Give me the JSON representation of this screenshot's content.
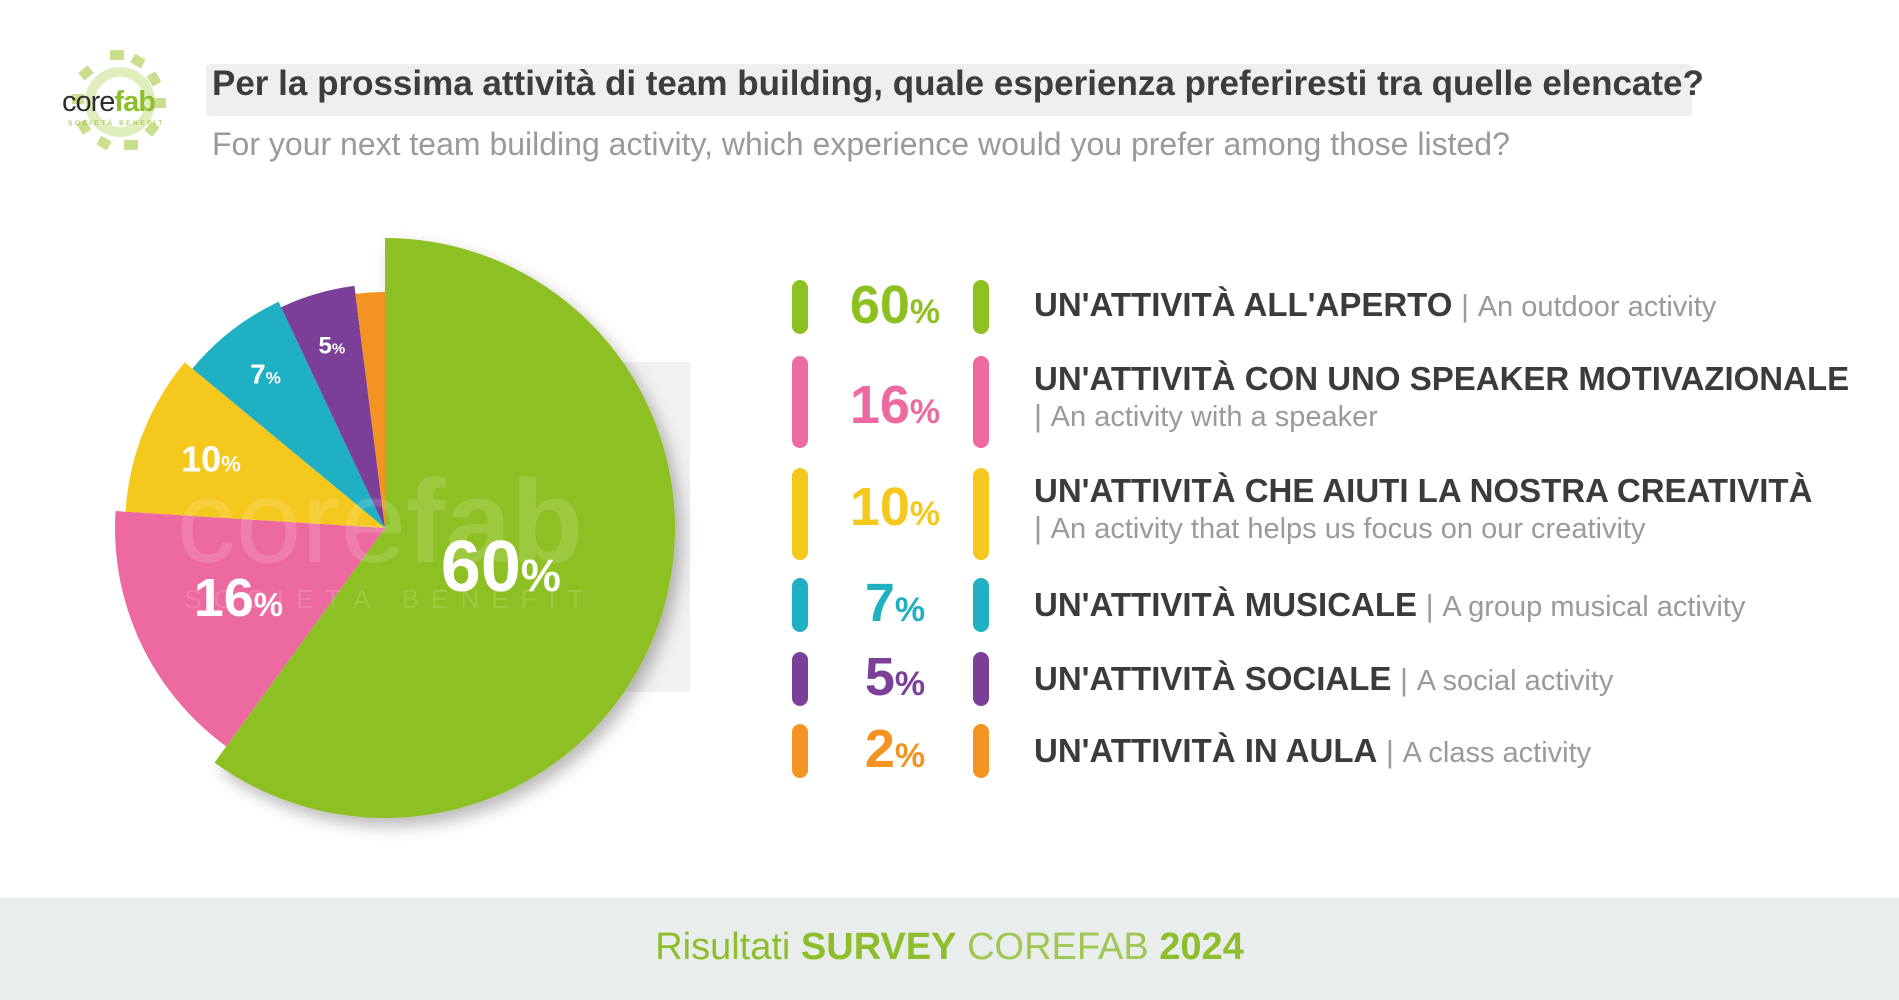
{
  "logo": {
    "text_core": "core",
    "text_fab": "fab",
    "subtext": "SOCIETÀ BENEFIT"
  },
  "header": {
    "title_it": "Per la prossima attività di team building, quale esperienza preferiresti tra quelle elencate?",
    "title_en": "For your next team building activity, which experience would you prefer among those listed?"
  },
  "chart_data": {
    "type": "pie",
    "watermark": {
      "main_light": "core",
      "main_bold": "fab",
      "sub": "SOCIETÀ BENEFIT"
    },
    "slices": [
      {
        "label_it": "UN'ATTIVITÀ ALL'APERTO",
        "label_en": "An outdoor activity",
        "value": 60,
        "color": "#8dc021",
        "pie_label": "60"
      },
      {
        "label_it": "UN'ATTIVITÀ CON UNO SPEAKER MOTIVAZIONALE",
        "label_en": "An activity with a speaker",
        "value": 16,
        "color": "#ec6aa0",
        "pie_label": "16"
      },
      {
        "label_it": "UN'ATTIVITÀ CHE AIUTI LA NOSTRA CREATIVITÀ",
        "label_en": "An activity that helps us focus on our creativity",
        "value": 10,
        "color": "#f4c81c",
        "pie_label": "10"
      },
      {
        "label_it": "UN'ATTIVITÀ MUSICALE",
        "label_en": "A group musical activity",
        "value": 7,
        "color": "#1fb0c3",
        "pie_label": "7"
      },
      {
        "label_it": "UN'ATTIVITÀ SOCIALE",
        "label_en": "A social activity",
        "value": 5,
        "color": "#7c3f98",
        "pie_label": "5"
      },
      {
        "label_it": "UN'ATTIVITÀ IN AULA",
        "label_en": "A class activity",
        "value": 2,
        "color": "#f39322",
        "pie_label": ""
      }
    ],
    "percent_sign": "%"
  },
  "legend": [
    {
      "pct": "60",
      "main": "UN'ATTIVITÀ ALL'APERTO",
      "en": "An outdoor activity"
    },
    {
      "pct": "16",
      "main": "UN'ATTIVITÀ CON UNO SPEAKER MOTIVAZIONALE",
      "en": "An activity with a speaker"
    },
    {
      "pct": "10",
      "main": "UN'ATTIVITÀ CHE AIUTI LA NOSTRA CREATIVITÀ",
      "en": "An activity that helps us focus on our creativity"
    },
    {
      "pct": "7",
      "main": "UN'ATTIVITÀ MUSICALE",
      "en": "A group musical activity"
    },
    {
      "pct": "5",
      "main": "UN'ATTIVITÀ SOCIALE",
      "en": "A social activity"
    },
    {
      "pct": "2",
      "main": "UN'ATTIVITÀ IN AULA",
      "en": "A class activity"
    }
  ],
  "separator": "|",
  "footer": {
    "word1": "Risultati",
    "word2": "SURVEY",
    "word3": "COREFAB",
    "word4": "2024"
  }
}
